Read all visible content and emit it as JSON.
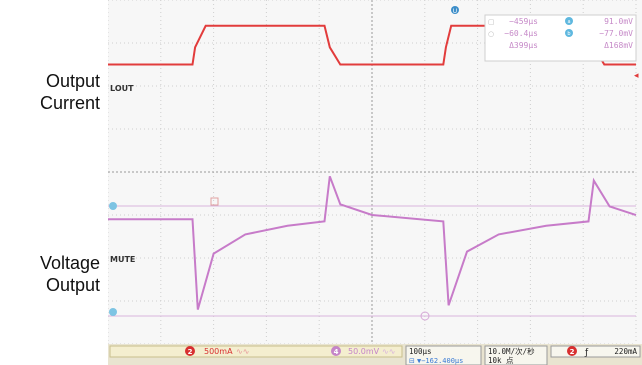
{
  "side_labels": {
    "top": [
      "Output",
      "Current"
    ],
    "bottom": [
      "Voltage",
      "Output"
    ]
  },
  "readout": {
    "marker": "U",
    "rows": [
      {
        "box": "▢",
        "time": "−459μs",
        "badge": "a",
        "volt": "91.0mV"
      },
      {
        "box": "○",
        "time": "−60.4μs",
        "badge": "b",
        "volt": "−77.0mV"
      },
      {
        "box": "",
        "time": "Δ399μs",
        "badge": "",
        "volt": "Δ168mV"
      }
    ]
  },
  "bottom_bar": {
    "ch2_badge": "2",
    "ch2_scale": "500mA",
    "ch4_badge": "4",
    "ch4_scale": "50.0mV",
    "time_div": "100μs",
    "offset_icon": "⊟",
    "offset": "▼−162.400μs",
    "rate": "10.0M/次/秒",
    "points": "10k 点",
    "trig_badge": "2",
    "trig_symbol": "ƒ",
    "trig_level": "220mA"
  },
  "chart_data": [
    {
      "type": "line",
      "name_label": "LOUT",
      "color": "#e23c3c",
      "x_divisions": 10,
      "y_divisions": 8,
      "description_units": "divisions (x: 0-10, y: 0-8 from bottom of screen)",
      "x": [
        0,
        1.6,
        1.65,
        1.85,
        4.1,
        4.2,
        4.4,
        6.35,
        6.4,
        6.5,
        9.1,
        9.2,
        9.4,
        10
      ],
      "y": [
        6.5,
        6.5,
        6.9,
        7.4,
        7.4,
        6.9,
        6.5,
        6.5,
        6.9,
        7.4,
        7.4,
        6.9,
        6.5,
        6.5
      ]
    },
    {
      "type": "line",
      "name_label": "MUTE",
      "color": "#c77bc9",
      "x": [
        0,
        1.6,
        1.7,
        2.0,
        2.6,
        3.4,
        4.1,
        4.2,
        4.4,
        5.0,
        6.35,
        6.45,
        6.8,
        7.4,
        8.3,
        9.1,
        9.2,
        9.5,
        10
      ],
      "y": [
        2.9,
        2.9,
        0.8,
        2.1,
        2.55,
        2.75,
        2.85,
        3.9,
        3.25,
        3.0,
        2.85,
        0.9,
        2.15,
        2.55,
        2.75,
        2.85,
        3.8,
        3.2,
        3.0
      ]
    }
  ]
}
